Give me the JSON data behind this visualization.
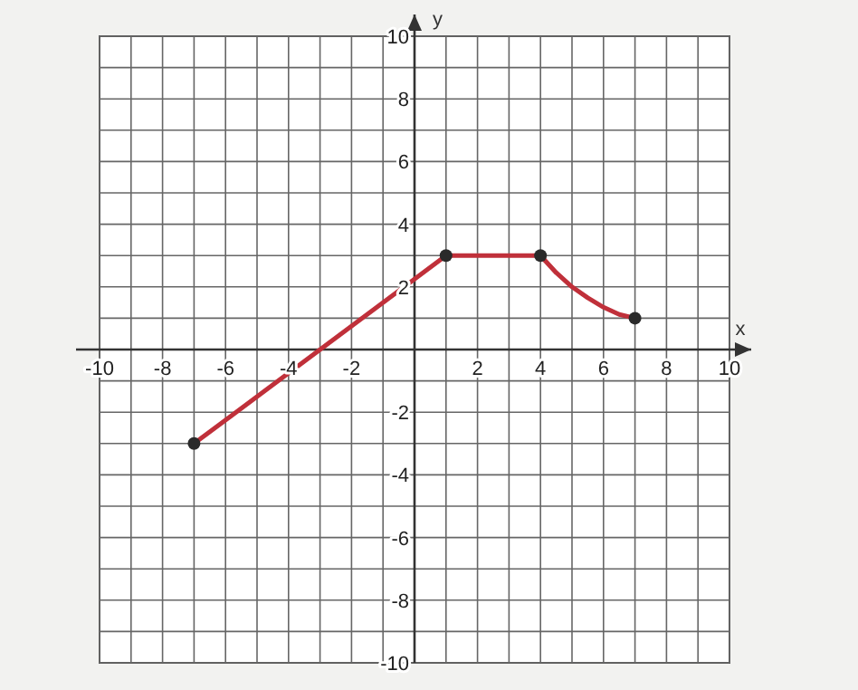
{
  "chart_data": {
    "type": "line",
    "xlabel": "x",
    "ylabel": "y",
    "xlim": [
      -10,
      10
    ],
    "ylim": [
      -10,
      10
    ],
    "xticks": [
      -10,
      {
        "value": -9,
        "label": null
      },
      -8,
      {
        "value": -7,
        "label": null
      },
      -6,
      {
        "value": -5,
        "label": null
      },
      -4,
      {
        "value": -3,
        "label": null
      },
      -2,
      {
        "value": -1,
        "label": null
      },
      {
        "value": 0,
        "label": null
      },
      {
        "value": 1,
        "label": null
      },
      2,
      {
        "value": 3,
        "label": null
      },
      4,
      {
        "value": 5,
        "label": null
      },
      6,
      {
        "value": 7,
        "label": null
      },
      8,
      {
        "value": 9,
        "label": null
      },
      10
    ],
    "yticks": [
      -10,
      {
        "value": -9,
        "label": null
      },
      -8,
      {
        "value": -7,
        "label": null
      },
      -6,
      {
        "value": -5,
        "label": null
      },
      -4,
      {
        "value": -3,
        "label": null
      },
      -2,
      {
        "value": -1,
        "label": null
      },
      {
        "value": 0,
        "label": null
      },
      {
        "value": 1,
        "label": null
      },
      2,
      {
        "value": 3,
        "label": null
      },
      4,
      {
        "value": 5,
        "label": null
      },
      6,
      {
        "value": 7,
        "label": null
      },
      8,
      {
        "value": 9,
        "label": null
      },
      10
    ],
    "grid": true,
    "series": [
      {
        "color": "#c0303a",
        "marker": "none",
        "line_style": "solid",
        "x": [
          -7,
          1,
          4,
          4.5,
          5,
          5.5,
          6,
          6.5,
          7
        ],
        "values": [
          -3,
          3,
          3,
          2.45,
          2,
          1.65,
          1.35,
          1.12,
          1
        ]
      },
      {
        "type": "scatter",
        "color": "#2a2a2a",
        "marker": "circle",
        "x": [
          -7,
          1,
          4,
          7
        ],
        "values": [
          -3,
          3,
          3,
          1
        ]
      }
    ]
  }
}
